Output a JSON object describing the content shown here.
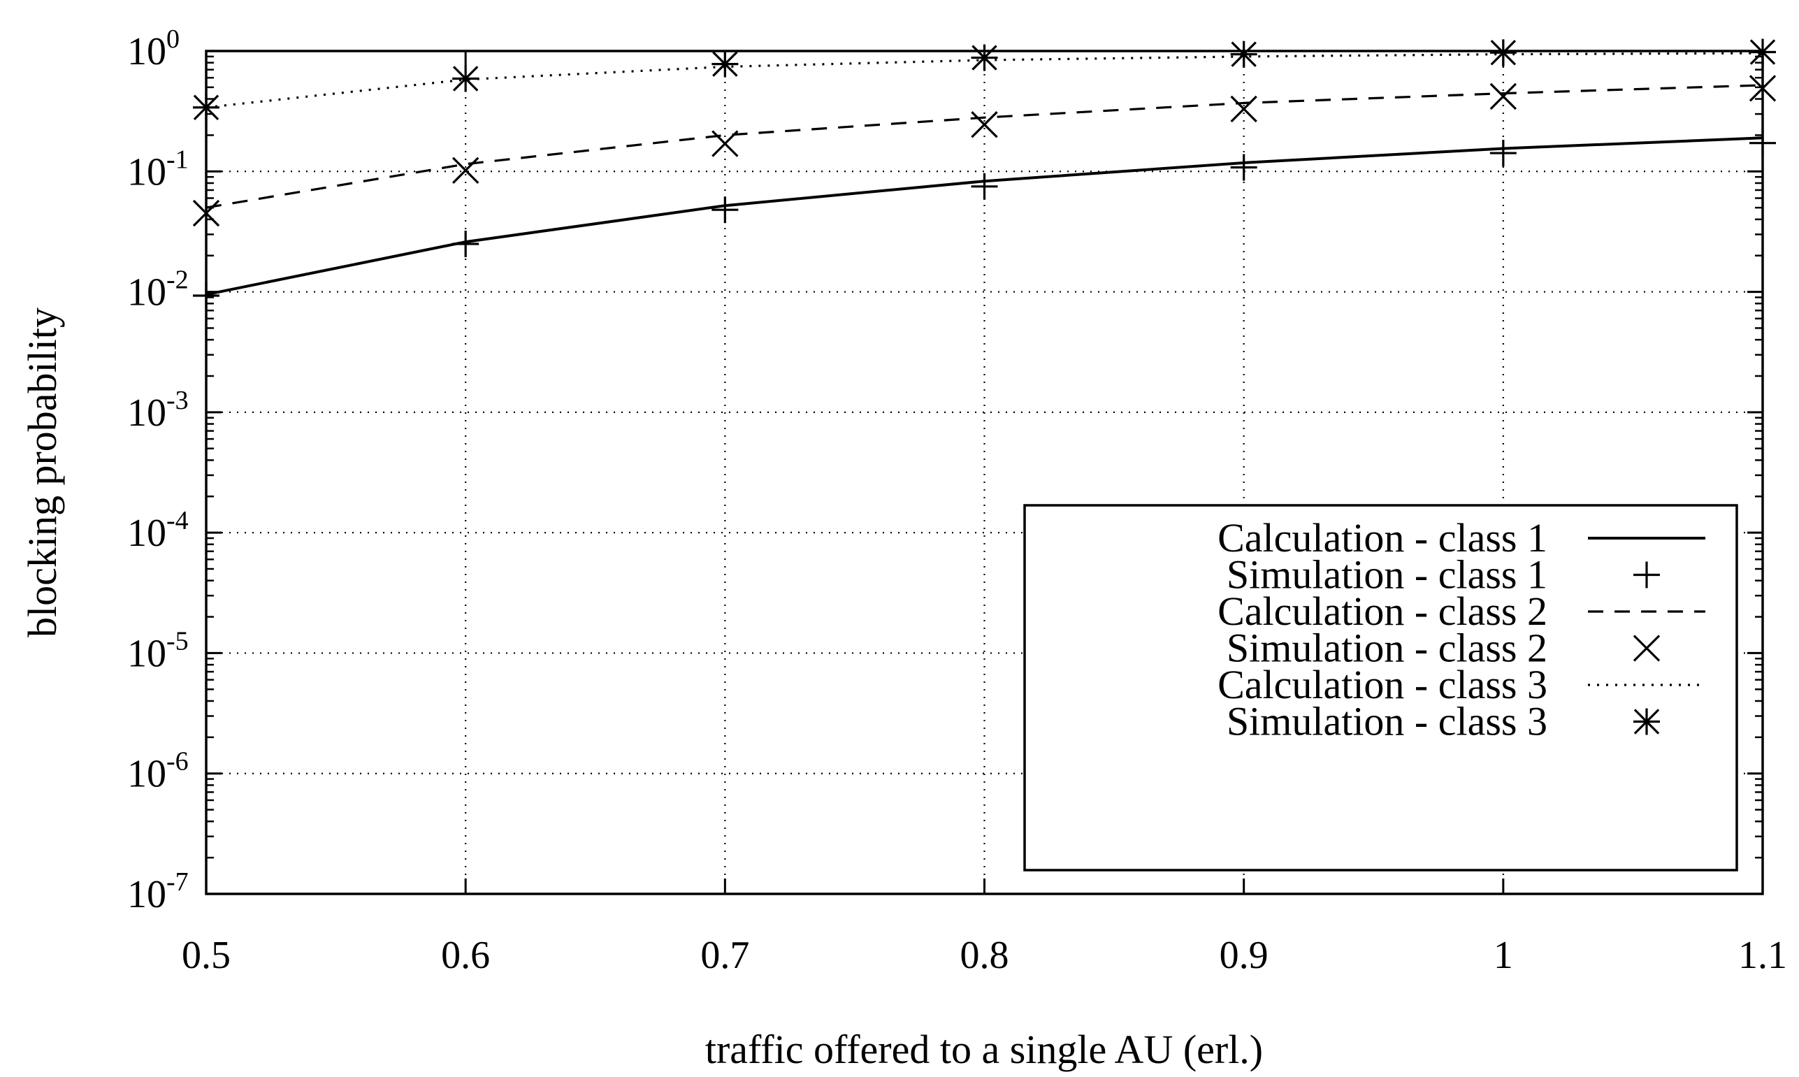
{
  "chart_data": {
    "type": "line",
    "title": "",
    "xlabel": "traffic offered to a single AU (erl.)",
    "ylabel": "blocking probability",
    "y_scale": "log",
    "xlim": [
      0.5,
      1.1
    ],
    "ylim": [
      1e-07,
      1
    ],
    "grid": true,
    "legend_position": "bottom-right",
    "x_ticks": [
      {
        "value": 0.5,
        "label": "0.5"
      },
      {
        "value": 0.6,
        "label": "0.6"
      },
      {
        "value": 0.7,
        "label": "0.7"
      },
      {
        "value": 0.8,
        "label": "0.8"
      },
      {
        "value": 0.9,
        "label": "0.9"
      },
      {
        "value": 1.0,
        "label": "1"
      },
      {
        "value": 1.1,
        "label": "1.1"
      }
    ],
    "y_ticks": [
      {
        "value": 1e-07,
        "base": "10",
        "exp": "-7"
      },
      {
        "value": 1e-06,
        "base": "10",
        "exp": "-6"
      },
      {
        "value": 1e-05,
        "base": "10",
        "exp": "-5"
      },
      {
        "value": 0.0001,
        "base": "10",
        "exp": "-4"
      },
      {
        "value": 0.001,
        "base": "10",
        "exp": "-3"
      },
      {
        "value": 0.01,
        "base": "10",
        "exp": "-2"
      },
      {
        "value": 0.1,
        "base": "10",
        "exp": "-1"
      },
      {
        "value": 1,
        "base": "10",
        "exp": "0"
      }
    ],
    "x": [
      0.5,
      0.6,
      0.7,
      0.8,
      0.9,
      1.0,
      1.1
    ],
    "series": [
      {
        "name": "Calculation - class 1",
        "style": "solid",
        "marker": "none",
        "values": [
          0.0095,
          0.026,
          0.052,
          0.083,
          0.118,
          0.155,
          0.19
        ]
      },
      {
        "name": "Simulation - class 1",
        "style": "none",
        "marker": "plus",
        "values": [
          0.0093,
          0.025,
          0.048,
          0.075,
          0.108,
          0.142,
          0.172
        ]
      },
      {
        "name": "Calculation - class 2",
        "style": "dashed",
        "marker": "none",
        "values": [
          0.05,
          0.115,
          0.2,
          0.28,
          0.37,
          0.445,
          0.52
        ]
      },
      {
        "name": "Simulation - class 2",
        "style": "none",
        "marker": "cross",
        "values": [
          0.045,
          0.102,
          0.17,
          0.245,
          0.33,
          0.42,
          0.49
        ]
      },
      {
        "name": "Calculation - class 3",
        "style": "dotted",
        "marker": "none",
        "values": [
          0.34,
          0.58,
          0.74,
          0.84,
          0.9,
          0.94,
          0.96
        ]
      },
      {
        "name": "Simulation - class 3",
        "style": "none",
        "marker": "star",
        "values": [
          0.34,
          0.59,
          0.78,
          0.88,
          0.94,
          0.97,
          0.98
        ]
      }
    ]
  }
}
